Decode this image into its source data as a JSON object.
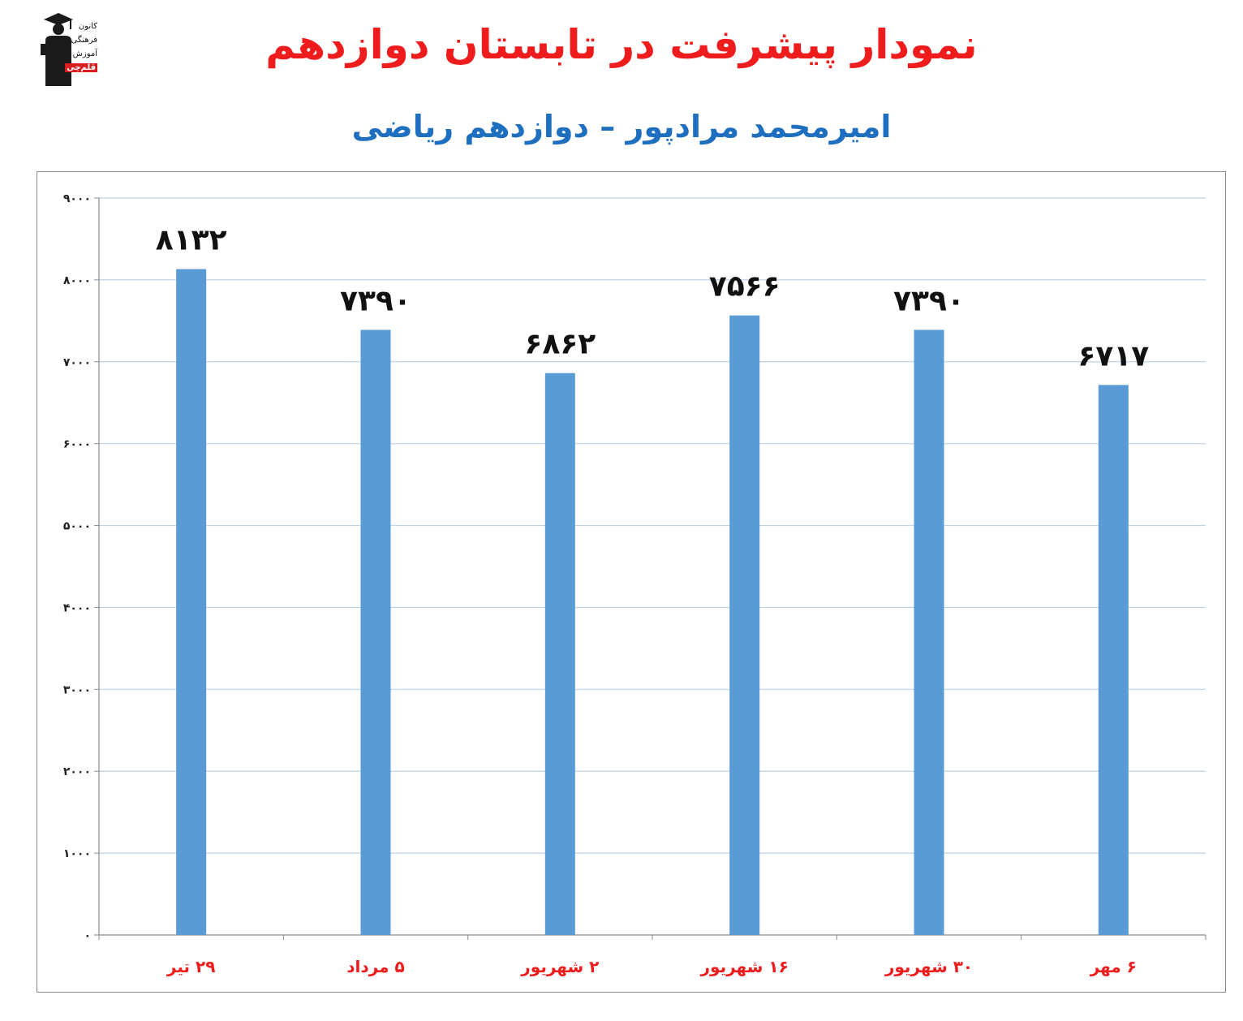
{
  "header": {
    "title": "نمودار پیشرفت در تابستان دوازدهم",
    "subtitle": "امیرمحمد مرادپور – دوازدهم ریاضی"
  },
  "logo": {
    "lines": [
      "کانون",
      "فرهنگی",
      "آموزش",
      "قلم‌چی"
    ]
  },
  "colors": {
    "title": "#ee1c1c",
    "subtitle": "#1f6fc0",
    "bar": "#5b9bd5",
    "gridline": "#bcd2e8",
    "xtick": "#ee1c1c"
  },
  "chart_data": {
    "type": "bar",
    "title": "",
    "xlabel": "",
    "ylabel": "",
    "categories": [
      "۲۹ تیر",
      "۵ مرداد",
      "۲ شهریور",
      "۱۶ شهریور",
      "۳۰ شهریور",
      "۶ مهر"
    ],
    "values": [
      8132,
      7390,
      6862,
      7566,
      7390,
      6717
    ],
    "data_labels": [
      "۸۱۳۲",
      "۷۳۹۰",
      "۶۸۶۲",
      "۷۵۶۶",
      "۷۳۹۰",
      "۶۷۱۷"
    ],
    "ylim": [
      0,
      9000
    ],
    "yticks": [
      0,
      1000,
      2000,
      3000,
      4000,
      5000,
      6000,
      7000,
      8000,
      9000
    ],
    "ytick_labels": [
      "۰",
      "۱۰۰۰",
      "۲۰۰۰",
      "۳۰۰۰",
      "۴۰۰۰",
      "۵۰۰۰",
      "۶۰۰۰",
      "۷۰۰۰",
      "۸۰۰۰",
      "۹۰۰۰"
    ],
    "grid": true,
    "legend": "none"
  }
}
